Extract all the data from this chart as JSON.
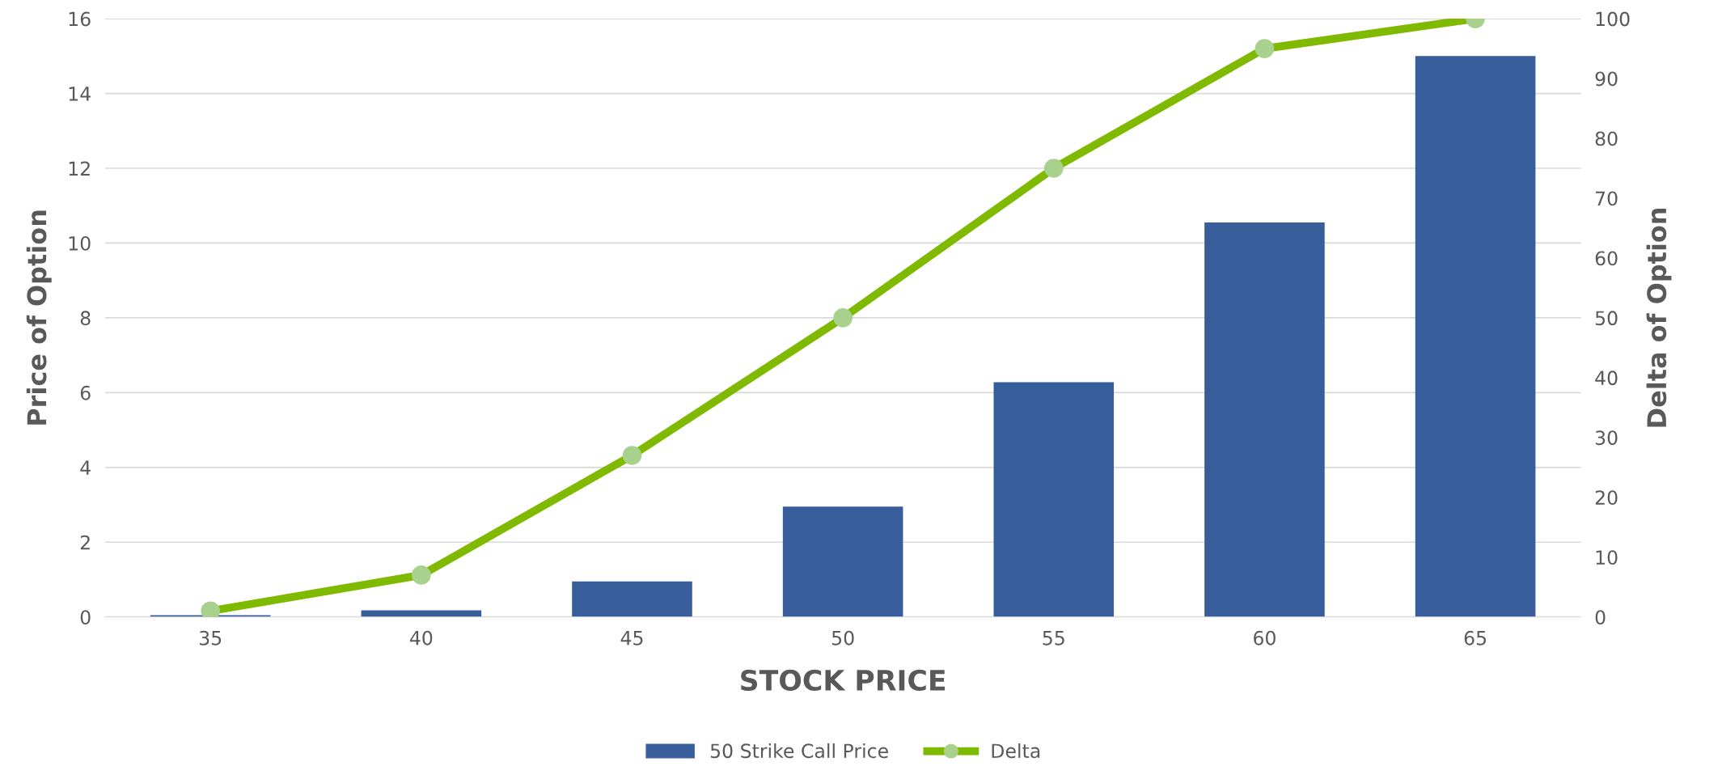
{
  "chart_data": {
    "type": "bar",
    "xlabel": "STOCK PRICE",
    "ylabel": "Price of Option",
    "y2label": "Delta of Option",
    "categories": [
      "35",
      "40",
      "45",
      "50",
      "55",
      "60",
      "65"
    ],
    "series": [
      {
        "name": "50 Strike Call Price",
        "color": "#375e9b",
        "values": [
          0.05,
          0.18,
          0.95,
          2.95,
          6.28,
          10.55,
          15.0
        ]
      },
      {
        "name": "Delta",
        "type": "line",
        "axis": "y2",
        "color": "#7fba00",
        "marker": "circle",
        "values": [
          1,
          7,
          27,
          50,
          75,
          95,
          100
        ]
      }
    ],
    "ylim": [
      0,
      16
    ],
    "yticks": [
      0,
      2,
      4,
      6,
      8,
      10,
      12,
      14,
      16
    ],
    "y2lim": [
      0,
      100
    ],
    "y2ticks": [
      0,
      10,
      20,
      30,
      40,
      50,
      60,
      70,
      80,
      90,
      100
    ],
    "grid": "y",
    "legend": "bottom"
  }
}
